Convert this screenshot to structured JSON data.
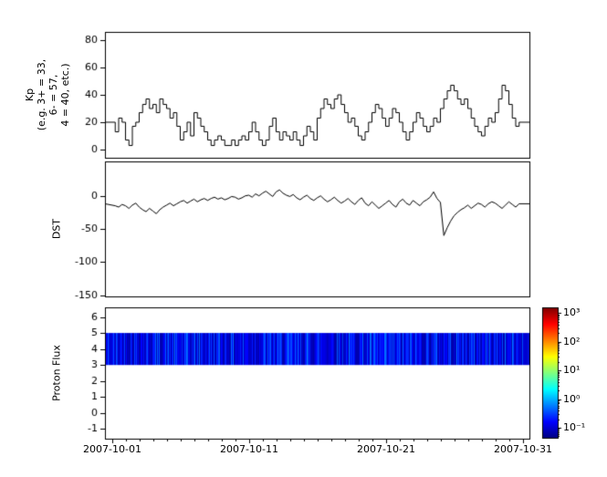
{
  "figure": {
    "background": "#ffffff",
    "line_color": "#000000",
    "x_axis": {
      "tick_labels": [
        "2007-10-01",
        "2007-10-11",
        "2007-10-21",
        "2007-10-31"
      ],
      "tick_days": [
        0,
        10,
        20,
        30
      ],
      "range_days": [
        -0.5,
        30.5
      ],
      "minor_tick_every_days": 1
    }
  },
  "chart_data": [
    {
      "type": "line",
      "style": "step",
      "name": "Kp",
      "ylabel_lines": [
        "Kp",
        "(e.g. 3+ = 33,",
        "6- = 57,",
        "4 = 40, etc.)"
      ],
      "ylim": [
        -6,
        86
      ],
      "yticks": [
        80,
        60,
        40,
        20,
        0
      ],
      "x_start_day": 0,
      "x_step_days": 0.25,
      "color": "#000000",
      "values": [
        20,
        13,
        23,
        20,
        7,
        3,
        17,
        20,
        27,
        33,
        37,
        30,
        33,
        27,
        37,
        33,
        30,
        23,
        27,
        17,
        7,
        13,
        20,
        10,
        27,
        23,
        17,
        13,
        7,
        3,
        7,
        10,
        7,
        3,
        3,
        7,
        3,
        7,
        10,
        7,
        13,
        20,
        13,
        7,
        3,
        7,
        17,
        23,
        13,
        7,
        13,
        10,
        7,
        13,
        7,
        3,
        10,
        17,
        13,
        7,
        23,
        30,
        37,
        33,
        30,
        37,
        40,
        33,
        27,
        20,
        23,
        17,
        10,
        7,
        13,
        20,
        27,
        33,
        30,
        23,
        17,
        23,
        30,
        27,
        20,
        13,
        7,
        13,
        20,
        27,
        23,
        17,
        13,
        17,
        23,
        20,
        30,
        37,
        43,
        47,
        43,
        37,
        33,
        37,
        30,
        23,
        17,
        13,
        10,
        17,
        23,
        20,
        27,
        37,
        47,
        43,
        33,
        23,
        17,
        20
      ]
    },
    {
      "type": "line",
      "style": "linear",
      "name": "DST",
      "ylabel": "DST",
      "ylim": [
        -152,
        52
      ],
      "yticks": [
        0,
        -50,
        -100,
        -150
      ],
      "x_start_day": 0,
      "x_step_days": 0.25,
      "color": "#000000",
      "values": [
        -12,
        -15,
        -17,
        -13,
        -15,
        -19,
        -14,
        -11,
        -17,
        -21,
        -24,
        -19,
        -23,
        -27,
        -21,
        -17,
        -14,
        -11,
        -15,
        -12,
        -9,
        -7,
        -11,
        -8,
        -5,
        -9,
        -6,
        -4,
        -7,
        -4,
        -2,
        -5,
        -3,
        -6,
        -4,
        -1,
        -2,
        -5,
        -3,
        0,
        1,
        -2,
        3,
        0,
        4,
        7,
        3,
        -1,
        6,
        9,
        4,
        1,
        -1,
        2,
        -3,
        -6,
        -2,
        1,
        -4,
        -7,
        -3,
        0,
        -5,
        -9,
        -6,
        -2,
        -7,
        -11,
        -8,
        -4,
        -9,
        -13,
        -7,
        -3,
        -11,
        -15,
        -9,
        -14,
        -19,
        -15,
        -11,
        -7,
        -13,
        -17,
        -9,
        -5,
        -11,
        -14,
        -7,
        -11,
        -15,
        -9,
        -6,
        -2,
        6,
        -4,
        -10,
        -60,
        -48,
        -38,
        -30,
        -25,
        -21,
        -18,
        -14,
        -19,
        -15,
        -11,
        -13,
        -17,
        -12,
        -9,
        -11,
        -15,
        -19,
        -14,
        -9,
        -13,
        -17,
        -12
      ]
    },
    {
      "type": "heatmap",
      "name": "Proton Flux",
      "ylabel": "Proton Flux",
      "ylim": [
        -1.6,
        6.6
      ],
      "yticks": [
        6,
        5,
        4,
        3,
        2,
        1,
        0,
        -1
      ],
      "band": {
        "y_min": 3,
        "y_max": 5
      },
      "noise_seed": 42,
      "flux_log_range": [
        -1.15,
        -0.25
      ],
      "colorbar": {
        "scale": "log",
        "log_range": [
          -1.35,
          3.2
        ],
        "tick_exponents": [
          3,
          2,
          1,
          0,
          -1
        ],
        "tick_labels": [
          "10³",
          "10²",
          "10¹",
          "10⁰",
          "10⁻¹"
        ],
        "colormap": "jet"
      }
    }
  ]
}
